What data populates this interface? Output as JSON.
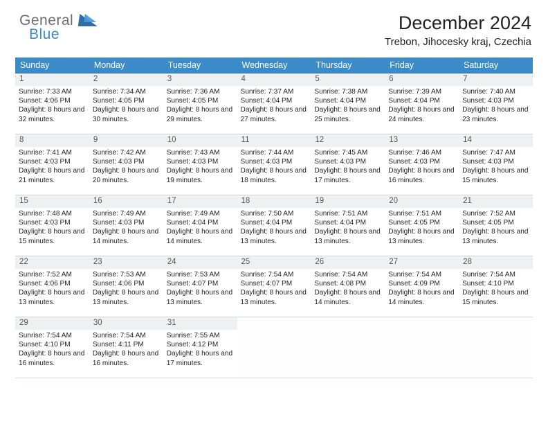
{
  "logo": {
    "line1": "General",
    "line2": "Blue"
  },
  "header": {
    "title": "December 2024",
    "location": "Trebon, Jihocesky kraj, Czechia"
  },
  "colors": {
    "header_bg": "#3b8bc8",
    "header_text": "#ffffff",
    "row_border_top": "#2666a3",
    "row_border_bottom": "#cfd7e1",
    "daynum_bg": "#eef0f1",
    "logo_gray": "#6d6e71",
    "logo_blue": "#3b8bc8"
  },
  "weekday_labels": [
    "Sunday",
    "Monday",
    "Tuesday",
    "Wednesday",
    "Thursday",
    "Friday",
    "Saturday"
  ],
  "weeks": [
    [
      {
        "n": "1",
        "sr": "7:33 AM",
        "ss": "4:06 PM",
        "dl": "8 hours and 32 minutes."
      },
      {
        "n": "2",
        "sr": "7:34 AM",
        "ss": "4:05 PM",
        "dl": "8 hours and 30 minutes."
      },
      {
        "n": "3",
        "sr": "7:36 AM",
        "ss": "4:05 PM",
        "dl": "8 hours and 29 minutes."
      },
      {
        "n": "4",
        "sr": "7:37 AM",
        "ss": "4:04 PM",
        "dl": "8 hours and 27 minutes."
      },
      {
        "n": "5",
        "sr": "7:38 AM",
        "ss": "4:04 PM",
        "dl": "8 hours and 25 minutes."
      },
      {
        "n": "6",
        "sr": "7:39 AM",
        "ss": "4:04 PM",
        "dl": "8 hours and 24 minutes."
      },
      {
        "n": "7",
        "sr": "7:40 AM",
        "ss": "4:03 PM",
        "dl": "8 hours and 23 minutes."
      }
    ],
    [
      {
        "n": "8",
        "sr": "7:41 AM",
        "ss": "4:03 PM",
        "dl": "8 hours and 21 minutes."
      },
      {
        "n": "9",
        "sr": "7:42 AM",
        "ss": "4:03 PM",
        "dl": "8 hours and 20 minutes."
      },
      {
        "n": "10",
        "sr": "7:43 AM",
        "ss": "4:03 PM",
        "dl": "8 hours and 19 minutes."
      },
      {
        "n": "11",
        "sr": "7:44 AM",
        "ss": "4:03 PM",
        "dl": "8 hours and 18 minutes."
      },
      {
        "n": "12",
        "sr": "7:45 AM",
        "ss": "4:03 PM",
        "dl": "8 hours and 17 minutes."
      },
      {
        "n": "13",
        "sr": "7:46 AM",
        "ss": "4:03 PM",
        "dl": "8 hours and 16 minutes."
      },
      {
        "n": "14",
        "sr": "7:47 AM",
        "ss": "4:03 PM",
        "dl": "8 hours and 15 minutes."
      }
    ],
    [
      {
        "n": "15",
        "sr": "7:48 AM",
        "ss": "4:03 PM",
        "dl": "8 hours and 15 minutes."
      },
      {
        "n": "16",
        "sr": "7:49 AM",
        "ss": "4:03 PM",
        "dl": "8 hours and 14 minutes."
      },
      {
        "n": "17",
        "sr": "7:49 AM",
        "ss": "4:04 PM",
        "dl": "8 hours and 14 minutes."
      },
      {
        "n": "18",
        "sr": "7:50 AM",
        "ss": "4:04 PM",
        "dl": "8 hours and 13 minutes."
      },
      {
        "n": "19",
        "sr": "7:51 AM",
        "ss": "4:04 PM",
        "dl": "8 hours and 13 minutes."
      },
      {
        "n": "20",
        "sr": "7:51 AM",
        "ss": "4:05 PM",
        "dl": "8 hours and 13 minutes."
      },
      {
        "n": "21",
        "sr": "7:52 AM",
        "ss": "4:05 PM",
        "dl": "8 hours and 13 minutes."
      }
    ],
    [
      {
        "n": "22",
        "sr": "7:52 AM",
        "ss": "4:06 PM",
        "dl": "8 hours and 13 minutes."
      },
      {
        "n": "23",
        "sr": "7:53 AM",
        "ss": "4:06 PM",
        "dl": "8 hours and 13 minutes."
      },
      {
        "n": "24",
        "sr": "7:53 AM",
        "ss": "4:07 PM",
        "dl": "8 hours and 13 minutes."
      },
      {
        "n": "25",
        "sr": "7:54 AM",
        "ss": "4:07 PM",
        "dl": "8 hours and 13 minutes."
      },
      {
        "n": "26",
        "sr": "7:54 AM",
        "ss": "4:08 PM",
        "dl": "8 hours and 14 minutes."
      },
      {
        "n": "27",
        "sr": "7:54 AM",
        "ss": "4:09 PM",
        "dl": "8 hours and 14 minutes."
      },
      {
        "n": "28",
        "sr": "7:54 AM",
        "ss": "4:10 PM",
        "dl": "8 hours and 15 minutes."
      }
    ],
    [
      {
        "n": "29",
        "sr": "7:54 AM",
        "ss": "4:10 PM",
        "dl": "8 hours and 16 minutes."
      },
      {
        "n": "30",
        "sr": "7:54 AM",
        "ss": "4:11 PM",
        "dl": "8 hours and 16 minutes."
      },
      {
        "n": "31",
        "sr": "7:55 AM",
        "ss": "4:12 PM",
        "dl": "8 hours and 17 minutes."
      },
      {
        "empty": true
      },
      {
        "empty": true
      },
      {
        "empty": true
      },
      {
        "empty": true
      }
    ]
  ],
  "labels": {
    "sunrise": "Sunrise: ",
    "sunset": "Sunset: ",
    "daylight": "Daylight: "
  }
}
